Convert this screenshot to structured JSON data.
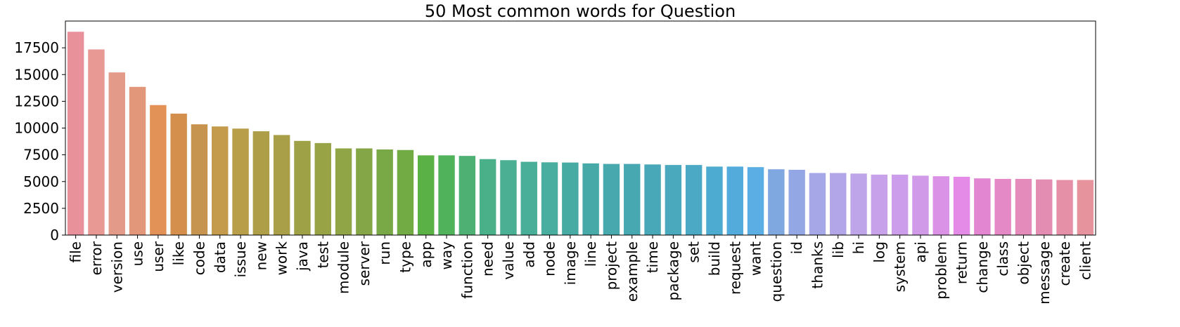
{
  "chart_data": {
    "type": "bar",
    "title": "50 Most common words for Question",
    "xlabel": "",
    "ylabel": "",
    "ylim": [
      0,
      20000
    ],
    "yticks": [
      0,
      2500,
      5000,
      7500,
      10000,
      12500,
      15000,
      17500
    ],
    "categories": [
      "file",
      "error",
      "version",
      "use",
      "user",
      "like",
      "code",
      "data",
      "issue",
      "new",
      "work",
      "java",
      "test",
      "module",
      "server",
      "run",
      "type",
      "app",
      "way",
      "function",
      "need",
      "value",
      "add",
      "node",
      "image",
      "line",
      "project",
      "example",
      "time",
      "package",
      "set",
      "build",
      "request",
      "want",
      "question",
      "id",
      "thanks",
      "lib",
      "hi",
      "log",
      "system",
      "api",
      "problem",
      "return",
      "change",
      "class",
      "object",
      "message",
      "create",
      "client"
    ],
    "values": [
      19000,
      17350,
      15200,
      13850,
      12150,
      11350,
      10350,
      10150,
      9950,
      9700,
      9350,
      8800,
      8600,
      8100,
      8100,
      8000,
      7950,
      7450,
      7450,
      7400,
      7100,
      7000,
      6850,
      6800,
      6780,
      6700,
      6650,
      6650,
      6600,
      6550,
      6550,
      6400,
      6400,
      6350,
      6150,
      6100,
      5800,
      5800,
      5750,
      5650,
      5650,
      5550,
      5500,
      5450,
      5300,
      5250,
      5250,
      5200,
      5150,
      5150
    ],
    "colors": [
      "#e8919b",
      "#e89994",
      "#e49a88",
      "#e2967a",
      "#e39257",
      "#d38f4b",
      "#c7944f",
      "#c49a4d",
      "#b99e4a",
      "#ae9e48",
      "#a89f48",
      "#9fa147",
      "#98a346",
      "#8fa546",
      "#85a647",
      "#79a847",
      "#72ab44",
      "#5ab146",
      "#50b25a",
      "#4eb173",
      "#4ab089",
      "#4aaf93",
      "#4aaf99",
      "#49ad9f",
      "#48aba3",
      "#47aaa9",
      "#47a9ad",
      "#48a8b2",
      "#49a8b7",
      "#4aa9bd",
      "#4ba9c5",
      "#4daad0",
      "#52abdb",
      "#5aaee3",
      "#7fa7e0",
      "#93a7e4",
      "#a5a7e7",
      "#b3a6e8",
      "#bea5e9",
      "#c7a2ea",
      "#cc9dea",
      "#d09ae9",
      "#da92e7",
      "#e38be6",
      "#e286d2",
      "#e488c6",
      "#e58bbc",
      "#e48db2",
      "#e590a7",
      "#e6939e"
    ],
    "grid": false,
    "legend": "none"
  }
}
